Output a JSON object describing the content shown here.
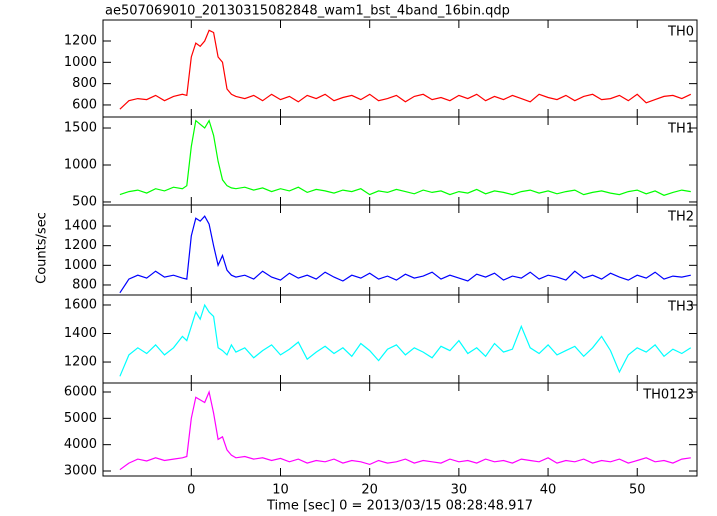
{
  "chart_data": [
    {
      "type": "line",
      "title": "ae507069010_20130315082848_wam1_bst_4band_16bin.qdp",
      "label": "TH0",
      "x": [
        -8,
        -7,
        -6,
        -5,
        -4,
        -3,
        -2,
        -1,
        -0.5,
        0,
        0.5,
        1,
        1.5,
        2,
        2.5,
        3,
        3.5,
        4,
        4.5,
        5,
        6,
        7,
        8,
        9,
        10,
        11,
        12,
        13,
        14,
        15,
        16,
        17,
        18,
        19,
        20,
        21,
        22,
        23,
        24,
        25,
        26,
        27,
        28,
        29,
        30,
        31,
        32,
        33,
        34,
        35,
        36,
        37,
        38,
        39,
        40,
        41,
        42,
        43,
        44,
        45,
        46,
        47,
        48,
        49,
        50,
        51,
        52,
        53,
        54,
        55,
        56
      ],
      "series": [
        {
          "name": "TH0",
          "color": "#ff0000",
          "values": [
            560,
            640,
            660,
            650,
            690,
            640,
            680,
            700,
            690,
            1050,
            1180,
            1150,
            1200,
            1300,
            1280,
            1050,
            1000,
            750,
            700,
            680,
            660,
            690,
            640,
            700,
            650,
            680,
            630,
            690,
            660,
            700,
            640,
            670,
            690,
            650,
            700,
            640,
            660,
            690,
            630,
            680,
            700,
            650,
            670,
            640,
            690,
            660,
            700,
            640,
            680,
            650,
            690,
            660,
            630,
            700,
            670,
            650,
            690,
            640,
            680,
            700,
            650,
            660,
            690,
            640,
            700,
            620,
            650,
            680,
            690,
            660,
            700
          ]
        }
      ],
      "xlim": [
        -9.9,
        56.7
      ],
      "ylim": [
        487,
        1397
      ],
      "yticks": [
        600,
        800,
        1000,
        1200
      ]
    },
    {
      "type": "line",
      "label": "TH1",
      "x": [
        -8,
        -7,
        -6,
        -5,
        -4,
        -3,
        -2,
        -1,
        -0.5,
        0,
        0.5,
        1,
        1.5,
        2,
        2.5,
        3,
        3.5,
        4,
        4.5,
        5,
        6,
        7,
        8,
        9,
        10,
        11,
        12,
        13,
        14,
        15,
        16,
        17,
        18,
        19,
        20,
        21,
        22,
        23,
        24,
        25,
        26,
        27,
        28,
        29,
        30,
        31,
        32,
        33,
        34,
        35,
        36,
        37,
        38,
        39,
        40,
        41,
        42,
        43,
        44,
        45,
        46,
        47,
        48,
        49,
        50,
        51,
        52,
        53,
        54,
        55,
        56
      ],
      "series": [
        {
          "name": "TH1",
          "color": "#00ff00",
          "values": [
            600,
            640,
            660,
            620,
            680,
            650,
            700,
            680,
            720,
            1250,
            1600,
            1550,
            1500,
            1600,
            1400,
            1050,
            800,
            720,
            690,
            680,
            700,
            660,
            690,
            640,
            680,
            650,
            700,
            630,
            670,
            650,
            620,
            660,
            640,
            680,
            600,
            650,
            630,
            670,
            640,
            610,
            660,
            630,
            650,
            600,
            640,
            620,
            670,
            610,
            650,
            630,
            600,
            640,
            660,
            620,
            650,
            610,
            640,
            660,
            600,
            630,
            650,
            620,
            600,
            640,
            660,
            610,
            650,
            590,
            630,
            660,
            640
          ]
        }
      ],
      "xlim": [
        -9.9,
        56.7
      ],
      "ylim": [
        459,
        1649
      ],
      "yticks": [
        500,
        1000,
        1500
      ]
    },
    {
      "type": "line",
      "label": "TH2",
      "y_label": "Counts/sec",
      "x": [
        -8,
        -7,
        -6,
        -5,
        -4,
        -3,
        -2,
        -1,
        -0.5,
        0,
        0.5,
        1,
        1.5,
        2,
        2.5,
        3,
        3.5,
        4,
        4.5,
        5,
        6,
        7,
        8,
        9,
        10,
        11,
        12,
        13,
        14,
        15,
        16,
        17,
        18,
        19,
        20,
        21,
        22,
        23,
        24,
        25,
        26,
        27,
        28,
        29,
        30,
        31,
        32,
        33,
        34,
        35,
        36,
        37,
        38,
        39,
        40,
        41,
        42,
        43,
        44,
        45,
        46,
        47,
        48,
        49,
        50,
        51,
        52,
        53,
        54,
        55,
        56
      ],
      "series": [
        {
          "name": "TH2",
          "color": "#0000ff",
          "values": [
            720,
            860,
            900,
            870,
            940,
            880,
            900,
            870,
            860,
            1300,
            1480,
            1450,
            1500,
            1420,
            1200,
            1000,
            1100,
            950,
            900,
            880,
            900,
            860,
            940,
            880,
            850,
            920,
            870,
            900,
            860,
            930,
            880,
            840,
            900,
            870,
            920,
            860,
            890,
            850,
            910,
            870,
            890,
            930,
            860,
            900,
            870,
            840,
            910,
            880,
            920,
            850,
            890,
            870,
            930,
            860,
            900,
            880,
            850,
            940,
            870,
            900,
            860,
            920,
            880,
            850,
            900,
            870,
            930,
            860,
            890,
            880,
            900
          ]
        }
      ],
      "xlim": [
        -9.9,
        56.7
      ],
      "ylim": [
        698,
        1614
      ],
      "yticks": [
        800,
        1000,
        1200,
        1400
      ]
    },
    {
      "type": "line",
      "label": "TH3",
      "x": [
        -8,
        -7,
        -6,
        -5,
        -4,
        -3,
        -2,
        -1,
        -0.5,
        0,
        0.5,
        1,
        1.5,
        2,
        2.5,
        3,
        3.5,
        4,
        4.5,
        5,
        6,
        7,
        8,
        9,
        10,
        11,
        12,
        13,
        14,
        15,
        16,
        17,
        18,
        19,
        20,
        21,
        22,
        23,
        24,
        25,
        26,
        27,
        28,
        29,
        30,
        31,
        32,
        33,
        34,
        35,
        36,
        37,
        38,
        39,
        40,
        41,
        42,
        43,
        44,
        45,
        46,
        47,
        48,
        49,
        50,
        51,
        52,
        53,
        54,
        55,
        56
      ],
      "series": [
        {
          "name": "TH3",
          "color": "#00ffff",
          "values": [
            1100,
            1250,
            1300,
            1260,
            1320,
            1250,
            1300,
            1380,
            1350,
            1450,
            1550,
            1500,
            1600,
            1550,
            1520,
            1300,
            1280,
            1250,
            1320,
            1270,
            1300,
            1230,
            1280,
            1320,
            1250,
            1290,
            1340,
            1220,
            1270,
            1310,
            1260,
            1300,
            1240,
            1330,
            1280,
            1210,
            1290,
            1320,
            1250,
            1300,
            1270,
            1230,
            1310,
            1280,
            1350,
            1260,
            1300,
            1240,
            1330,
            1270,
            1290,
            1450,
            1300,
            1260,
            1320,
            1250,
            1280,
            1310,
            1240,
            1300,
            1380,
            1280,
            1130,
            1250,
            1300,
            1270,
            1320,
            1240,
            1290,
            1260,
            1300
          ]
        }
      ],
      "xlim": [
        -9.9,
        56.7
      ],
      "ylim": [
        1053,
        1670
      ],
      "yticks": [
        1200,
        1400,
        1600
      ]
    },
    {
      "type": "line",
      "label": "TH0123",
      "x_label": "Time [sec] 0 = 2013/03/15 08:28:48.917",
      "x": [
        -8,
        -7,
        -6,
        -5,
        -4,
        -3,
        -2,
        -1,
        -0.5,
        0,
        0.5,
        1,
        1.5,
        2,
        2.5,
        3,
        3.5,
        4,
        4.5,
        5,
        6,
        7,
        8,
        9,
        10,
        11,
        12,
        13,
        14,
        15,
        16,
        17,
        18,
        19,
        20,
        21,
        22,
        23,
        24,
        25,
        26,
        27,
        28,
        29,
        30,
        31,
        32,
        33,
        34,
        35,
        36,
        37,
        38,
        39,
        40,
        41,
        42,
        43,
        44,
        45,
        46,
        47,
        48,
        49,
        50,
        51,
        52,
        53,
        54,
        55,
        56
      ],
      "series": [
        {
          "name": "TH0123",
          "color": "#ff00ff",
          "values": [
            3050,
            3300,
            3450,
            3380,
            3500,
            3400,
            3450,
            3500,
            3550,
            5000,
            5800,
            5700,
            5600,
            6000,
            5200,
            4200,
            4300,
            3800,
            3600,
            3500,
            3550,
            3450,
            3500,
            3400,
            3480,
            3350,
            3450,
            3300,
            3400,
            3350,
            3450,
            3300,
            3400,
            3350,
            3250,
            3400,
            3300,
            3350,
            3450,
            3300,
            3400,
            3350,
            3300,
            3450,
            3350,
            3400,
            3300,
            3450,
            3350,
            3400,
            3300,
            3450,
            3400,
            3350,
            3500,
            3300,
            3400,
            3350,
            3450,
            3300,
            3400,
            3350,
            3450,
            3300,
            3400,
            3500,
            3350,
            3400,
            3300,
            3450,
            3500
          ]
        }
      ],
      "xlim": [
        -9.9,
        56.7
      ],
      "ylim": [
        2810,
        6342
      ],
      "yticks": [
        3000,
        4000,
        5000,
        6000
      ],
      "xticks": [
        0,
        10,
        20,
        30,
        40,
        50
      ]
    }
  ]
}
